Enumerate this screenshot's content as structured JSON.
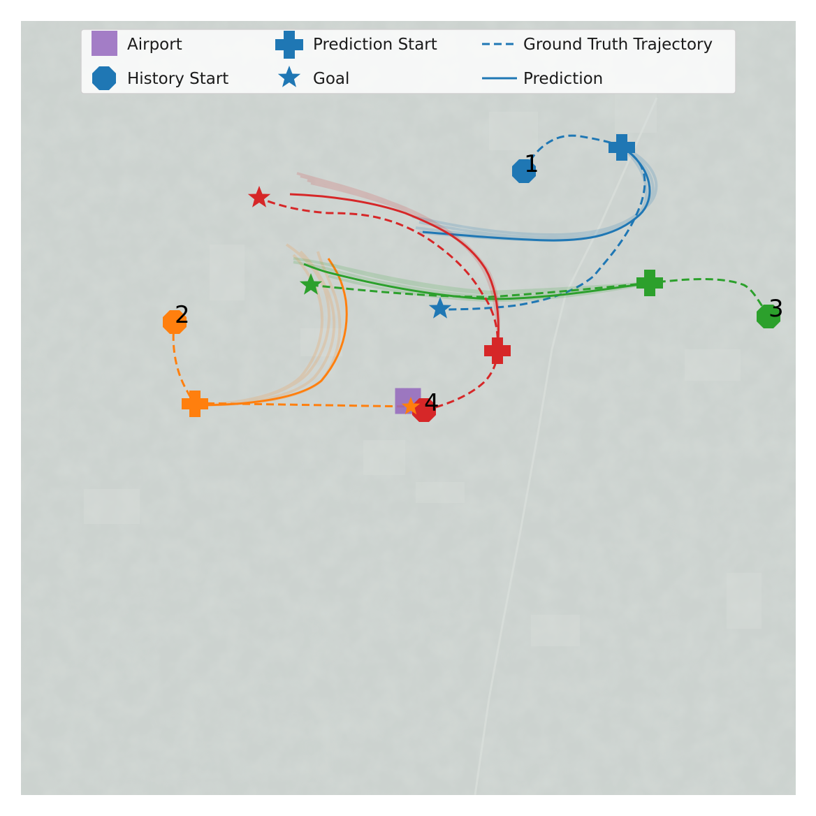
{
  "legend": {
    "airport": "Airport",
    "history_start": "History Start",
    "prediction_start": "Prediction Start",
    "goal": "Goal",
    "ground_truth": "Ground Truth Trajectory",
    "prediction": "Prediction"
  },
  "colors": {
    "airport": "#9467bd",
    "agent_1": "#1f77b4",
    "agent_2": "#ff7f0e",
    "agent_3": "#2ca02c",
    "agent_4": "#d62728",
    "legend_marker": "#1f77b4"
  },
  "agents": [
    {
      "id": "1",
      "label": "1",
      "color": "#1f77b4"
    },
    {
      "id": "2",
      "label": "2",
      "color": "#ff7f0e"
    },
    {
      "id": "3",
      "label": "3",
      "color": "#2ca02c"
    },
    {
      "id": "4",
      "label": "4",
      "color": "#d62728"
    }
  ],
  "background": "satellite-imagery-faded"
}
